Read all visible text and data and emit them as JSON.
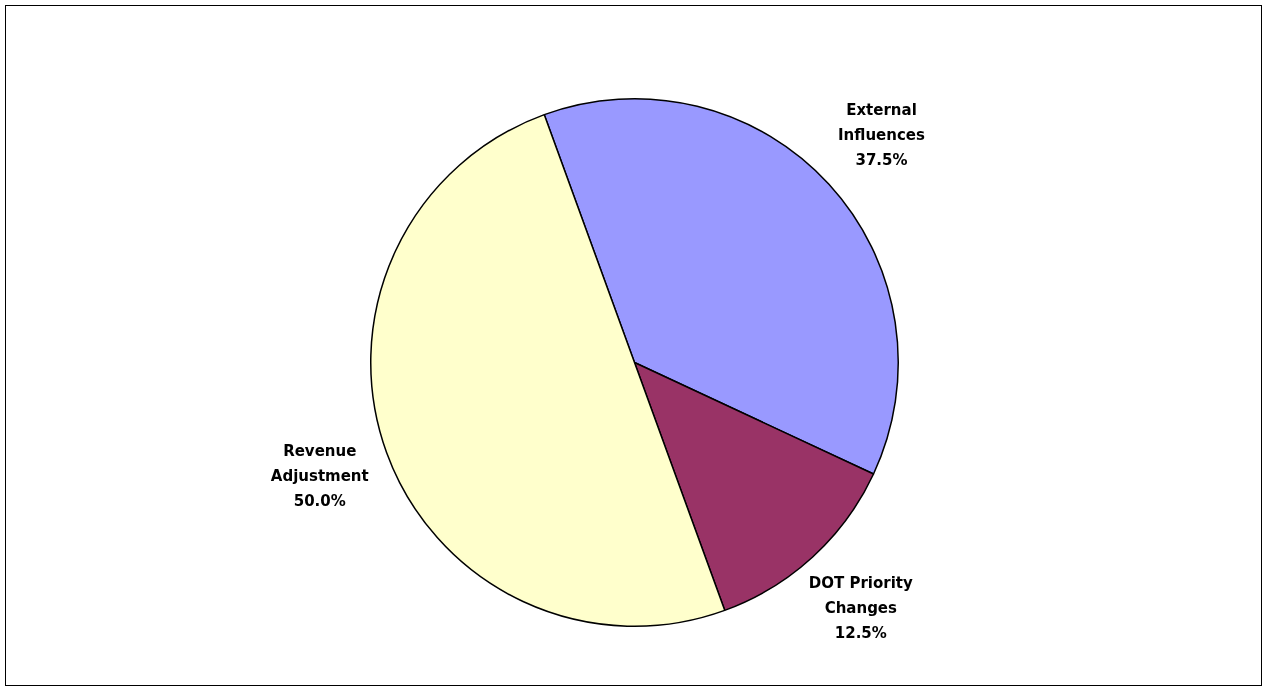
{
  "chart_data": {
    "type": "pie",
    "categories": [
      "External Influences",
      "DOT Priority Changes",
      "Revenue Adjustment"
    ],
    "values": [
      37.5,
      12.5,
      50
    ],
    "colors": [
      "#9999ff",
      "#993366",
      "#ffffcc"
    ],
    "value_labels": [
      "37.5%",
      "12.5%",
      "50.0%"
    ],
    "legend": false
  }
}
